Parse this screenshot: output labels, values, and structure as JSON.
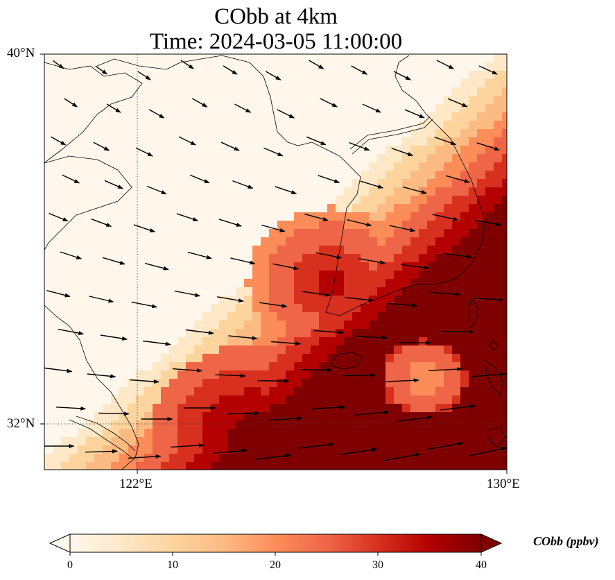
{
  "title": {
    "line1": "CObb at 4km",
    "line2": "Time: 2024-03-05 11:00:00"
  },
  "map": {
    "lat_labels": [
      "40°N",
      "32°N"
    ],
    "lon_labels": [
      "122°E",
      "130°E"
    ],
    "extent": {
      "lon_min": 120,
      "lon_max": 130,
      "lat_min": 31,
      "lat_max": 40
    },
    "gridlines": "dotted",
    "variable": "CObb",
    "vectors": "wind arrows (uniform, blowing east-southeast / east)"
  },
  "colorbar": {
    "ticks": [
      "0",
      "10",
      "20",
      "30",
      "40"
    ],
    "min": 0,
    "max": 40,
    "label": "CObb (ppbv)",
    "colormap": "OrRd",
    "colors": [
      "#fff7ec",
      "#fee8c8",
      "#fdd49e",
      "#fdbb84",
      "#fc8d59",
      "#ef6548",
      "#d7301f",
      "#b30000",
      "#7f0000"
    ],
    "extend": "both"
  }
}
